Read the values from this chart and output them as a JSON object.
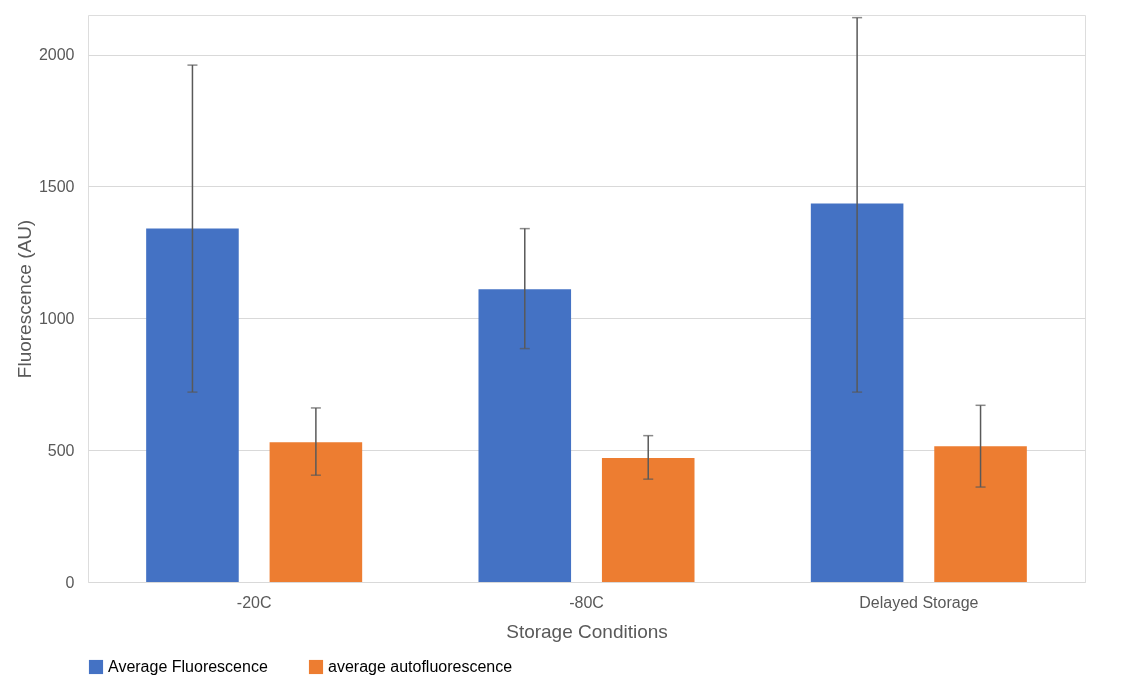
{
  "chart_data": {
    "type": "bar",
    "xlabel": "Storage Conditions",
    "ylabel": "Fluorescence (AU)",
    "categories": [
      "-20C",
      "-80C",
      "Delayed Storage"
    ],
    "series": [
      {
        "name": "Average Fluorescence",
        "color": "#4472c4",
        "values": [
          1340,
          1110,
          1435
        ],
        "errors": [
          [
            720,
            1960
          ],
          [
            885,
            1340
          ],
          [
            720,
            2140
          ]
        ]
      },
      {
        "name": "average autofluorescence",
        "color": "#ed7d31",
        "values": [
          530,
          470,
          515
        ],
        "errors": [
          [
            405,
            660
          ],
          [
            390,
            555
          ],
          [
            360,
            670
          ]
        ]
      }
    ],
    "ylim": [
      0,
      2150
    ],
    "yticks": [
      0,
      500,
      1000,
      1500,
      2000
    ],
    "grid": "y",
    "legend": "bottom"
  }
}
